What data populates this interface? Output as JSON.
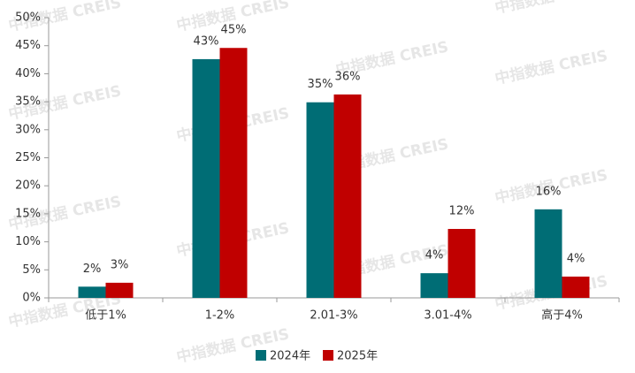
{
  "chart_data": {
    "type": "bar",
    "watermark": "中指数据 CREIS",
    "categories": [
      "低于1%",
      "1-2%",
      "2.01-3%",
      "3.01-4%",
      "高于4%"
    ],
    "series": [
      {
        "name": "2024年",
        "color": "#006d75",
        "values": [
          2.0,
          42.6,
          34.9,
          4.4,
          15.8
        ],
        "value_labels": [
          "2%",
          "43%",
          "35%",
          "4%",
          "16%"
        ]
      },
      {
        "name": "2025年",
        "color": "#c00000",
        "values": [
          2.7,
          44.6,
          36.3,
          12.3,
          3.8
        ],
        "value_labels": [
          "3%",
          "45%",
          "36%",
          "12%",
          "4%"
        ]
      }
    ],
    "ylim": [
      0,
      50
    ],
    "yticks": [
      {
        "value": 0,
        "label": "0%"
      },
      {
        "value": 5,
        "label": "5%"
      },
      {
        "value": 10,
        "label": "10%"
      },
      {
        "value": 15,
        "label": "15%"
      },
      {
        "value": 20,
        "label": "20%"
      },
      {
        "value": 25,
        "label": "25%"
      },
      {
        "value": 30,
        "label": "30%"
      },
      {
        "value": 35,
        "label": "35%"
      },
      {
        "value": 40,
        "label": "40%"
      },
      {
        "value": 45,
        "label": "45%"
      },
      {
        "value": 50,
        "label": "50%"
      }
    ],
    "grid": false,
    "legend": "bottom"
  }
}
